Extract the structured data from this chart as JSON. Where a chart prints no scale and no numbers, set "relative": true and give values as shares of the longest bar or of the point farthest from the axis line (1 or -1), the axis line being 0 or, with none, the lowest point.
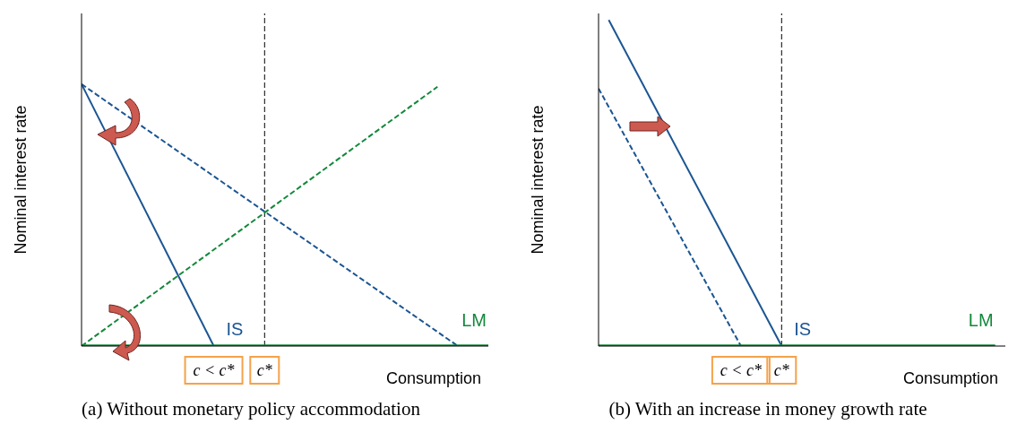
{
  "chart_data": [
    {
      "type": "line",
      "relative": true,
      "title": "(a) Without monetary policy accommodation",
      "xlabel": "Consumption",
      "ylabel": "Nominal interest rate",
      "categories": [
        null,
        null,
        null,
        null,
        null,
        null,
        null,
        null,
        null,
        null,
        null,
        null,
        null,
        "c < c*",
        null,
        null,
        null,
        null,
        "c*",
        null,
        null,
        null,
        null,
        null,
        null,
        null,
        null,
        null,
        null,
        null,
        null,
        null,
        null,
        null,
        null,
        null,
        null,
        null,
        null,
        null,
        null
      ],
      "series": [
        {
          "name": "IS",
          "color": "#1b5592",
          "line_style": "solid",
          "values": [
            1,
            null,
            null,
            null,
            null,
            null,
            null,
            null,
            null,
            null,
            null,
            null,
            null,
            0,
            null,
            null,
            null,
            null,
            null,
            null,
            null,
            null,
            null,
            null,
            null,
            null,
            null,
            null,
            null,
            null,
            null,
            null,
            null,
            null,
            null,
            null,
            null,
            null,
            null,
            null,
            null
          ]
        },
        {
          "color": "#1b5592",
          "line_style": "dashed",
          "values": [
            1,
            null,
            null,
            null,
            null,
            null,
            null,
            null,
            null,
            null,
            null,
            null,
            null,
            null,
            null,
            null,
            null,
            null,
            null,
            null,
            null,
            null,
            null,
            null,
            null,
            null,
            null,
            null,
            null,
            null,
            null,
            null,
            null,
            null,
            null,
            null,
            null,
            0,
            null,
            null,
            null
          ]
        },
        {
          "color": "#13883a",
          "line_style": "dashed",
          "values": [
            0,
            null,
            null,
            null,
            null,
            null,
            null,
            null,
            null,
            null,
            null,
            null,
            null,
            null,
            null,
            null,
            null,
            null,
            null,
            null,
            null,
            null,
            null,
            null,
            null,
            null,
            null,
            null,
            null,
            null,
            null,
            null,
            null,
            null,
            null,
            0.99,
            null,
            null,
            null,
            null,
            null
          ]
        },
        {
          "name": "LM",
          "color": "#13883a",
          "line_style": "solid",
          "values": [
            0,
            null,
            null,
            null,
            null,
            null,
            null,
            null,
            null,
            null,
            null,
            null,
            null,
            null,
            null,
            null,
            null,
            null,
            null,
            null,
            null,
            null,
            null,
            null,
            null,
            null,
            null,
            null,
            null,
            null,
            null,
            null,
            null,
            null,
            null,
            null,
            null,
            null,
            null,
            null,
            0
          ]
        }
      ],
      "ref_lines": [
        {
          "axis": "x",
          "value": "c*",
          "color": "#000000",
          "line_style": "dashed"
        }
      ]
    },
    {
      "type": "line",
      "relative": true,
      "title": "(b) With an increase in money growth rate",
      "xlabel": "Consumption",
      "ylabel": "Nominal interest rate",
      "categories": [
        null,
        null,
        null,
        null,
        null,
        null,
        null,
        null,
        null,
        null,
        null,
        null,
        null,
        null,
        "c < c*",
        null,
        null,
        null,
        "c*",
        null,
        null,
        null,
        null,
        null,
        null,
        null,
        null,
        null,
        null,
        null,
        null,
        null,
        null,
        null,
        null,
        null,
        null,
        null,
        null,
        null,
        null
      ],
      "series": [
        {
          "name": "IS",
          "color": "#1b5592",
          "line_style": "solid",
          "values": [
            null,
            1,
            null,
            null,
            null,
            null,
            null,
            null,
            null,
            null,
            null,
            null,
            null,
            null,
            null,
            null,
            null,
            null,
            0,
            null,
            null,
            null,
            null,
            null,
            null,
            null,
            null,
            null,
            null,
            null,
            null,
            null,
            null,
            null,
            null,
            null,
            null,
            null,
            null,
            null,
            null
          ]
        },
        {
          "color": "#1b5592",
          "line_style": "dashed",
          "values": [
            0.79,
            null,
            null,
            null,
            null,
            null,
            null,
            null,
            null,
            null,
            null,
            null,
            null,
            null,
            0,
            null,
            null,
            null,
            null,
            null,
            null,
            null,
            null,
            null,
            null,
            null,
            null,
            null,
            null,
            null,
            null,
            null,
            null,
            null,
            null,
            null,
            null,
            null,
            null,
            null,
            null
          ]
        },
        {
          "name": "LM",
          "color": "#13883a",
          "line_style": "solid",
          "values": [
            0,
            null,
            null,
            null,
            null,
            null,
            null,
            null,
            null,
            null,
            null,
            null,
            null,
            null,
            null,
            null,
            null,
            null,
            null,
            null,
            null,
            null,
            null,
            null,
            null,
            null,
            null,
            null,
            null,
            null,
            null,
            null,
            null,
            null,
            null,
            null,
            null,
            null,
            null,
            0,
            null
          ]
        }
      ],
      "ref_lines": [
        {
          "axis": "x",
          "value": "c*",
          "color": "#000000",
          "line_style": "dashed"
        }
      ]
    }
  ]
}
